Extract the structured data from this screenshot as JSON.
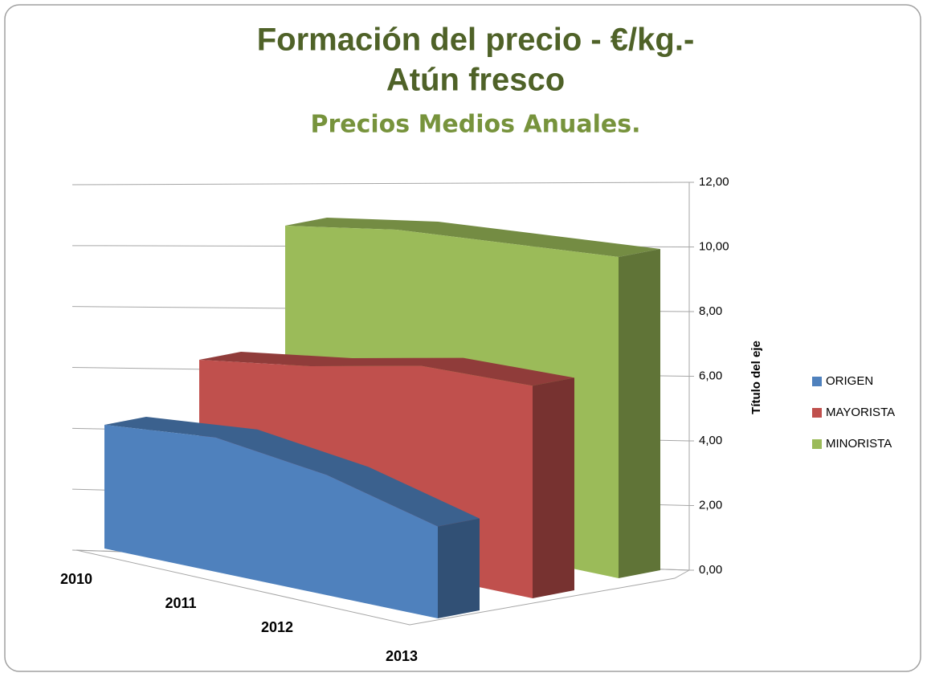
{
  "chart_data": {
    "type": "area3d",
    "title": "Formación del precio - €/kg.-",
    "title_line2": "Atún fresco",
    "subtitle": "Precios Medios Anuales.",
    "y_axis_title": "Título del eje",
    "categories": [
      "2010",
      "2011",
      "2012",
      "2013"
    ],
    "series": [
      {
        "name": "ORIGEN",
        "color": "#4f81bd",
        "values": [
          3.5,
          3.8,
          3.4,
          2.6
        ]
      },
      {
        "name": "MAYORISTA",
        "color": "#c0504d",
        "values": [
          5.0,
          5.5,
          6.2,
          6.3
        ]
      },
      {
        "name": "MINORISTA",
        "color": "#9bbb59",
        "values": [
          8.8,
          9.4,
          9.7,
          10.0
        ]
      }
    ],
    "ylim": [
      0,
      12
    ],
    "yticks": [
      {
        "value": 0,
        "label": "0,00"
      },
      {
        "value": 2,
        "label": "2,00"
      },
      {
        "value": 4,
        "label": "4,00"
      },
      {
        "value": 6,
        "label": "6,00"
      },
      {
        "value": 8,
        "label": "8,00"
      },
      {
        "value": 10,
        "label": "10,00"
      },
      {
        "value": 12,
        "label": "12,00"
      }
    ],
    "grid": true,
    "legend": "right"
  }
}
